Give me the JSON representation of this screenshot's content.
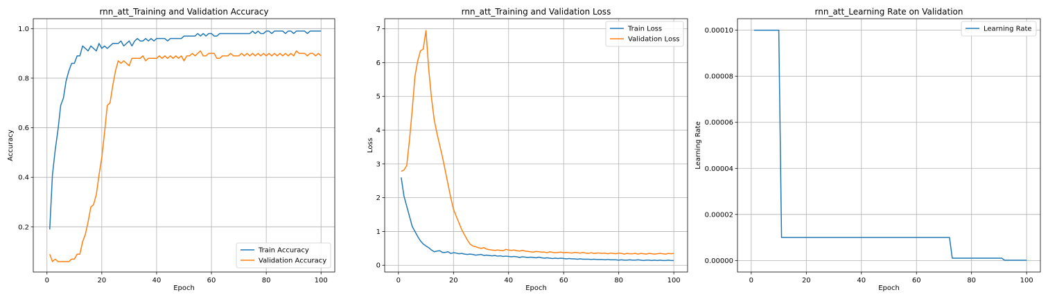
{
  "colors": {
    "train": "#1f77b4",
    "validation": "#ff7f0e",
    "grid": "#b0b0b0",
    "axes": "#000000"
  },
  "chart_data": [
    {
      "type": "line",
      "title": "rnn_att_Training and Validation Accuracy",
      "xlabel": "Epoch",
      "ylabel": "Accuracy",
      "xlim": [
        -5,
        105
      ],
      "ylim": [
        0.018,
        1.04
      ],
      "xticks": [
        0,
        20,
        40,
        60,
        80,
        100
      ],
      "yticks": [
        0.2,
        0.4,
        0.6,
        0.8,
        1.0
      ],
      "xtick_labels": [
        "0",
        "20",
        "40",
        "60",
        "80",
        "100"
      ],
      "ytick_labels": [
        "0.2",
        "0.4",
        "0.6",
        "0.8",
        "1.0"
      ],
      "grid": true,
      "legend": "lower-right",
      "x": [
        1,
        2,
        3,
        4,
        5,
        6,
        7,
        8,
        9,
        10,
        11,
        12,
        13,
        14,
        15,
        16,
        17,
        18,
        19,
        20,
        21,
        22,
        23,
        24,
        25,
        26,
        27,
        28,
        29,
        30,
        31,
        32,
        33,
        34,
        35,
        36,
        37,
        38,
        39,
        40,
        41,
        42,
        43,
        44,
        45,
        46,
        47,
        48,
        49,
        50,
        51,
        52,
        53,
        54,
        55,
        56,
        57,
        58,
        59,
        60,
        61,
        62,
        63,
        64,
        65,
        66,
        67,
        68,
        69,
        70,
        71,
        72,
        73,
        74,
        75,
        76,
        77,
        78,
        79,
        80,
        81,
        82,
        83,
        84,
        85,
        86,
        87,
        88,
        89,
        90,
        91,
        92,
        93,
        94,
        95,
        96,
        97,
        98,
        99,
        100
      ],
      "series": [
        {
          "name": "Train Accuracy",
          "color": "#1f77b4",
          "values": [
            0.19,
            0.41,
            0.51,
            0.59,
            0.69,
            0.72,
            0.79,
            0.83,
            0.86,
            0.86,
            0.89,
            0.89,
            0.93,
            0.92,
            0.91,
            0.93,
            0.92,
            0.91,
            0.94,
            0.92,
            0.93,
            0.92,
            0.93,
            0.94,
            0.94,
            0.94,
            0.95,
            0.93,
            0.94,
            0.95,
            0.93,
            0.95,
            0.96,
            0.95,
            0.95,
            0.96,
            0.95,
            0.96,
            0.95,
            0.96,
            0.96,
            0.96,
            0.96,
            0.95,
            0.96,
            0.96,
            0.96,
            0.96,
            0.96,
            0.97,
            0.97,
            0.97,
            0.97,
            0.97,
            0.98,
            0.97,
            0.98,
            0.97,
            0.98,
            0.98,
            0.97,
            0.97,
            0.98,
            0.98,
            0.98,
            0.98,
            0.98,
            0.98,
            0.98,
            0.98,
            0.98,
            0.98,
            0.98,
            0.98,
            0.99,
            0.98,
            0.99,
            0.98,
            0.98,
            0.99,
            0.99,
            0.98,
            0.99,
            0.99,
            0.99,
            0.99,
            0.98,
            0.99,
            0.99,
            0.98,
            0.99,
            0.99,
            0.99,
            0.99,
            0.98,
            0.99,
            0.99,
            0.99,
            0.99,
            0.99
          ]
        },
        {
          "name": "Validation Accuracy",
          "color": "#ff7f0e",
          "values": [
            0.09,
            0.06,
            0.07,
            0.06,
            0.06,
            0.06,
            0.06,
            0.06,
            0.07,
            0.07,
            0.09,
            0.09,
            0.14,
            0.17,
            0.22,
            0.28,
            0.29,
            0.33,
            0.41,
            0.48,
            0.58,
            0.69,
            0.7,
            0.77,
            0.83,
            0.87,
            0.86,
            0.87,
            0.86,
            0.85,
            0.88,
            0.88,
            0.88,
            0.88,
            0.89,
            0.87,
            0.88,
            0.88,
            0.88,
            0.88,
            0.89,
            0.88,
            0.89,
            0.88,
            0.89,
            0.88,
            0.89,
            0.88,
            0.89,
            0.87,
            0.89,
            0.89,
            0.9,
            0.89,
            0.9,
            0.91,
            0.89,
            0.89,
            0.9,
            0.9,
            0.9,
            0.88,
            0.88,
            0.89,
            0.89,
            0.89,
            0.9,
            0.89,
            0.89,
            0.89,
            0.9,
            0.89,
            0.9,
            0.89,
            0.9,
            0.89,
            0.9,
            0.89,
            0.9,
            0.89,
            0.9,
            0.89,
            0.9,
            0.89,
            0.9,
            0.89,
            0.9,
            0.89,
            0.9,
            0.89,
            0.91,
            0.9,
            0.9,
            0.9,
            0.89,
            0.9,
            0.9,
            0.89,
            0.9,
            0.89
          ]
        }
      ]
    },
    {
      "type": "line",
      "title": "rnn_att_Training and Validation Loss",
      "xlabel": "Epoch",
      "ylabel": "Loss",
      "xlim": [
        -5,
        105
      ],
      "ylim": [
        -0.2,
        7.3
      ],
      "xticks": [
        0,
        20,
        40,
        60,
        80,
        100
      ],
      "yticks": [
        0,
        1,
        2,
        3,
        4,
        5,
        6,
        7
      ],
      "xtick_labels": [
        "0",
        "20",
        "40",
        "60",
        "80",
        "100"
      ],
      "ytick_labels": [
        "0",
        "1",
        "2",
        "3",
        "4",
        "5",
        "6",
        "7"
      ],
      "grid": true,
      "legend": "top-right",
      "x": [
        1,
        2,
        3,
        4,
        5,
        6,
        7,
        8,
        9,
        10,
        11,
        12,
        13,
        14,
        15,
        16,
        17,
        18,
        19,
        20,
        21,
        22,
        23,
        24,
        25,
        26,
        27,
        28,
        29,
        30,
        31,
        32,
        33,
        34,
        35,
        36,
        37,
        38,
        39,
        40,
        41,
        42,
        43,
        44,
        45,
        46,
        47,
        48,
        49,
        50,
        51,
        52,
        53,
        54,
        55,
        56,
        57,
        58,
        59,
        60,
        61,
        62,
        63,
        64,
        65,
        66,
        67,
        68,
        69,
        70,
        71,
        72,
        73,
        74,
        75,
        76,
        77,
        78,
        79,
        80,
        81,
        82,
        83,
        84,
        85,
        86,
        87,
        88,
        89,
        90,
        91,
        92,
        93,
        94,
        95,
        96,
        97,
        98,
        99,
        100
      ],
      "series": [
        {
          "name": "Train Loss",
          "color": "#1f77b4",
          "values": [
            2.6,
            2.05,
            1.75,
            1.45,
            1.15,
            1.0,
            0.85,
            0.72,
            0.63,
            0.57,
            0.52,
            0.45,
            0.4,
            0.42,
            0.43,
            0.38,
            0.38,
            0.4,
            0.35,
            0.37,
            0.36,
            0.34,
            0.35,
            0.33,
            0.32,
            0.33,
            0.32,
            0.3,
            0.31,
            0.32,
            0.29,
            0.3,
            0.29,
            0.28,
            0.29,
            0.27,
            0.28,
            0.26,
            0.27,
            0.26,
            0.25,
            0.26,
            0.25,
            0.23,
            0.25,
            0.24,
            0.23,
            0.24,
            0.23,
            0.22,
            0.24,
            0.22,
            0.21,
            0.22,
            0.21,
            0.2,
            0.21,
            0.2,
            0.21,
            0.2,
            0.19,
            0.2,
            0.19,
            0.19,
            0.18,
            0.19,
            0.18,
            0.18,
            0.18,
            0.17,
            0.18,
            0.17,
            0.17,
            0.17,
            0.16,
            0.17,
            0.16,
            0.16,
            0.16,
            0.15,
            0.16,
            0.15,
            0.15,
            0.16,
            0.15,
            0.15,
            0.16,
            0.15,
            0.14,
            0.15,
            0.15,
            0.14,
            0.15,
            0.14,
            0.15,
            0.14,
            0.14,
            0.15,
            0.14,
            0.14
          ]
        },
        {
          "name": "Validation Loss",
          "color": "#ff7f0e",
          "values": [
            2.78,
            2.82,
            2.95,
            3.7,
            4.6,
            5.6,
            6.05,
            6.35,
            6.4,
            6.95,
            5.8,
            4.95,
            4.3,
            3.9,
            3.55,
            3.2,
            2.8,
            2.4,
            2.0,
            1.65,
            1.45,
            1.25,
            1.05,
            0.9,
            0.75,
            0.63,
            0.57,
            0.55,
            0.52,
            0.5,
            0.52,
            0.48,
            0.46,
            0.45,
            0.44,
            0.45,
            0.44,
            0.43,
            0.47,
            0.45,
            0.44,
            0.45,
            0.43,
            0.42,
            0.44,
            0.42,
            0.41,
            0.4,
            0.39,
            0.41,
            0.4,
            0.39,
            0.39,
            0.37,
            0.4,
            0.38,
            0.37,
            0.38,
            0.39,
            0.37,
            0.38,
            0.37,
            0.36,
            0.38,
            0.37,
            0.36,
            0.38,
            0.36,
            0.35,
            0.37,
            0.35,
            0.36,
            0.36,
            0.35,
            0.36,
            0.34,
            0.36,
            0.35,
            0.34,
            0.36,
            0.35,
            0.33,
            0.35,
            0.34,
            0.34,
            0.35,
            0.33,
            0.35,
            0.34,
            0.33,
            0.35,
            0.34,
            0.33,
            0.34,
            0.35,
            0.34,
            0.33,
            0.35,
            0.34,
            0.35
          ]
        }
      ]
    },
    {
      "type": "line",
      "title": "rnn_att_Learning Rate on Validation",
      "xlabel": "Epoch",
      "ylabel": "Learning Rate",
      "xlim": [
        -5,
        105
      ],
      "ylim": [
        -5e-06,
        0.000105
      ],
      "xticks": [
        0,
        20,
        40,
        60,
        80,
        100
      ],
      "yticks": [
        0,
        2e-05,
        4e-05,
        6e-05,
        8e-05,
        0.0001
      ],
      "xtick_labels": [
        "0",
        "20",
        "40",
        "60",
        "80",
        "100"
      ],
      "ytick_labels": [
        "0.00000",
        "0.00002",
        "0.00004",
        "0.00006",
        "0.00008",
        "0.00010"
      ],
      "grid": true,
      "legend": "top-right",
      "x": [
        1,
        10,
        11,
        72,
        73,
        91,
        92,
        100
      ],
      "series": [
        {
          "name": "Learning Rate",
          "color": "#1f77b4",
          "values": [
            0.0001,
            0.0001,
            1e-05,
            1e-05,
            1e-06,
            1e-06,
            1e-07,
            1e-07
          ]
        }
      ]
    }
  ]
}
